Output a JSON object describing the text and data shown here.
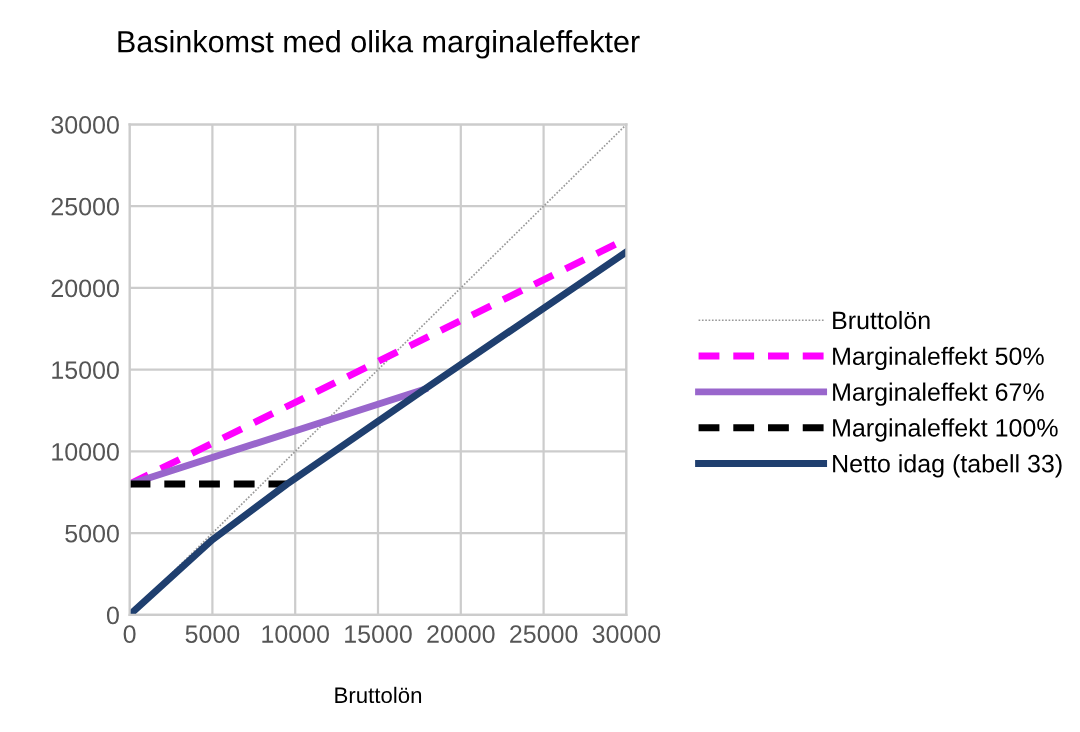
{
  "chart_data": {
    "type": "line",
    "title": "Basinkomst med olika marginaleffekter",
    "xlabel": "Bruttolön",
    "xlim": [
      0,
      30000
    ],
    "ylim": [
      0,
      30000
    ],
    "xticks": [
      0,
      5000,
      10000,
      15000,
      20000,
      25000,
      30000
    ],
    "yticks": [
      0,
      5000,
      10000,
      15000,
      20000,
      25000,
      30000
    ],
    "grid": true,
    "legend": "right",
    "marker": "none",
    "series": [
      {
        "name": "Bruttolön",
        "color": "#999999",
        "line_style": "dotted",
        "x": [
          0,
          30000
        ],
        "values": [
          0,
          30000
        ]
      },
      {
        "name": "Marginaleffekt 50%",
        "color": "#ff00ff",
        "line_style": "dashed",
        "x": [
          0,
          30000
        ],
        "values": [
          8000,
          23000
        ]
      },
      {
        "name": "Marginaleffekt 67%",
        "color": "#9966cc",
        "line_style": "solid",
        "x": [
          0,
          17800
        ],
        "values": [
          8000,
          13800
        ]
      },
      {
        "name": "Marginaleffekt 100%",
        "color": "#000000",
        "line_style": "dashed",
        "x": [
          0,
          9500
        ],
        "values": [
          8000,
          8000
        ]
      },
      {
        "name": "Netto idag (tabell 33)",
        "color": "#1f3f6f",
        "line_style": "solid",
        "x": [
          0,
          5000,
          9500,
          17800,
          30000
        ],
        "values": [
          0,
          4600,
          8000,
          13800,
          22200
        ]
      }
    ]
  }
}
